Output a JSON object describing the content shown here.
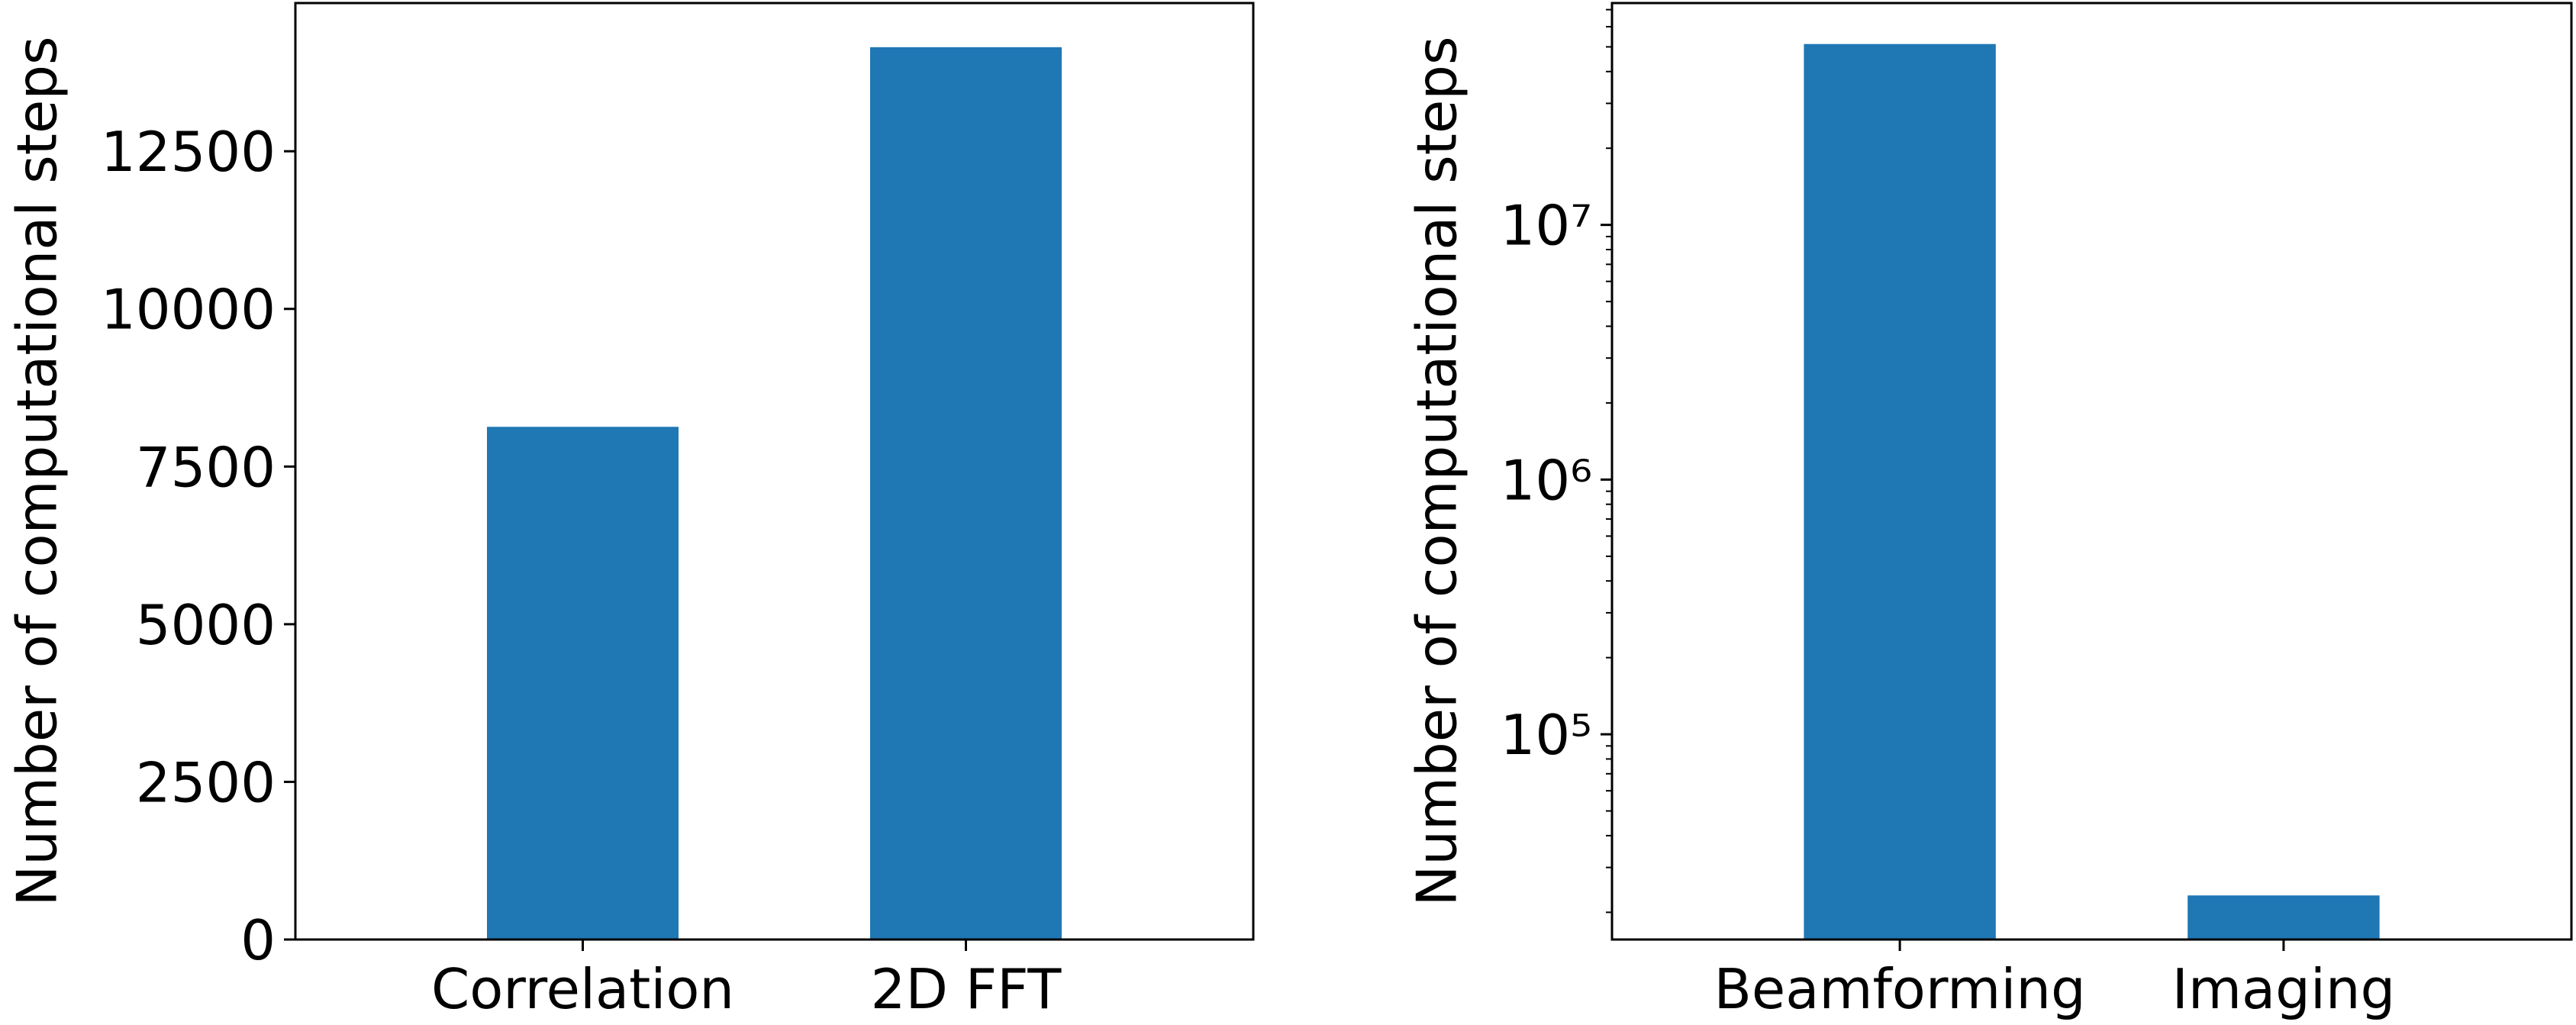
{
  "chart_data": [
    {
      "type": "bar",
      "ylabel": "Number of computational steps",
      "categories": [
        "Correlation",
        "2D FFT"
      ],
      "values": [
        8130,
        14150
      ],
      "color": "#1f77b4",
      "ylim": [
        0,
        14850
      ],
      "yticks": [
        0,
        2500,
        5000,
        7500,
        10000,
        12500
      ],
      "log_scale": false,
      "grid": false
    },
    {
      "type": "bar",
      "ylabel": "Number of computational steps",
      "categories": [
        "Beamforming",
        "Imaging"
      ],
      "values": [
        51300000,
        23300
      ],
      "color": "#1f77b4",
      "ylim": [
        15640,
        74300000
      ],
      "log_scale": true,
      "grid": false,
      "yticks": [
        {
          "value": 100000,
          "label": "10⁵"
        },
        {
          "value": 1000000,
          "label": "10⁶"
        },
        {
          "value": 10000000,
          "label": "10⁷"
        }
      ],
      "minor_yticks": [
        20000,
        30000,
        40000,
        50000,
        60000,
        70000,
        80000,
        90000,
        200000,
        300000,
        400000,
        500000,
        600000,
        700000,
        800000,
        900000,
        2000000,
        3000000,
        4000000,
        5000000,
        6000000,
        7000000,
        8000000,
        9000000,
        20000000,
        30000000,
        40000000,
        50000000,
        60000000,
        70000000
      ]
    }
  ]
}
